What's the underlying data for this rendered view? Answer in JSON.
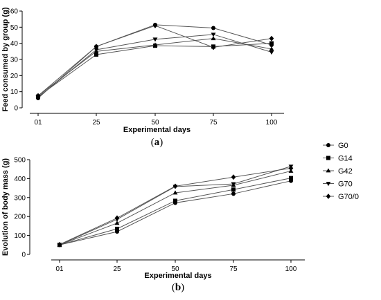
{
  "chart_data": [
    {
      "type": "line",
      "panel_label": "a",
      "x": [
        1,
        25,
        50,
        75,
        100
      ],
      "x_ticks": [
        "01",
        "25",
        "50",
        "75",
        "100"
      ],
      "xlabel": "Experimental days",
      "ylabel": "Feed consumed by group (g)",
      "ylim": [
        0,
        60
      ],
      "y_ticks": [
        0,
        10,
        20,
        30,
        40,
        50,
        60
      ],
      "series": [
        {
          "name": "G0",
          "marker": "circle",
          "values": [
            6,
            38,
            51.5,
            49.5,
            39
          ]
        },
        {
          "name": "G14",
          "marker": "square",
          "values": [
            7,
            33,
            38.5,
            38,
            40
          ]
        },
        {
          "name": "G42",
          "marker": "triangle-up",
          "values": [
            7.5,
            35,
            39,
            43,
            36.5
          ]
        },
        {
          "name": "G70",
          "marker": "triangle-down",
          "values": [
            6.5,
            36,
            42.5,
            45.5,
            34.5
          ]
        },
        {
          "name": "G70/0",
          "marker": "diamond",
          "values": [
            7.5,
            38,
            51,
            37.5,
            43
          ]
        }
      ]
    },
    {
      "type": "line",
      "panel_label": "b",
      "x": [
        1,
        25,
        50,
        75,
        100
      ],
      "x_ticks": [
        "01",
        "25",
        "50",
        "75",
        "100"
      ],
      "xlabel": "Experimental days",
      "ylabel": "Evolution of body mass (g)",
      "ylim": [
        0,
        500
      ],
      "y_ticks": [
        0,
        100,
        200,
        300,
        400,
        500
      ],
      "series": [
        {
          "name": "G0",
          "marker": "circle",
          "values": [
            50,
            120,
            272,
            320,
            388
          ]
        },
        {
          "name": "G14",
          "marker": "square",
          "values": [
            50,
            135,
            283,
            342,
            403
          ]
        },
        {
          "name": "G42",
          "marker": "triangle-up",
          "values": [
            50,
            165,
            325,
            365,
            440
          ]
        },
        {
          "name": "G70",
          "marker": "triangle-down",
          "values": [
            50,
            185,
            358,
            372,
            465
          ]
        },
        {
          "name": "G70/0",
          "marker": "diamond",
          "values": [
            52,
            192,
            360,
            408,
            455
          ]
        }
      ]
    }
  ],
  "legend": {
    "placement": "right",
    "items": [
      {
        "label": "G0",
        "marker": "circle"
      },
      {
        "label": "G14",
        "marker": "square"
      },
      {
        "label": "G42",
        "marker": "triangle-up"
      },
      {
        "label": "G70",
        "marker": "triangle-down"
      },
      {
        "label": "G70/0",
        "marker": "diamond"
      }
    ]
  },
  "colors": {
    "line": "#555555",
    "marker": "#000000",
    "axis": "#000000"
  }
}
